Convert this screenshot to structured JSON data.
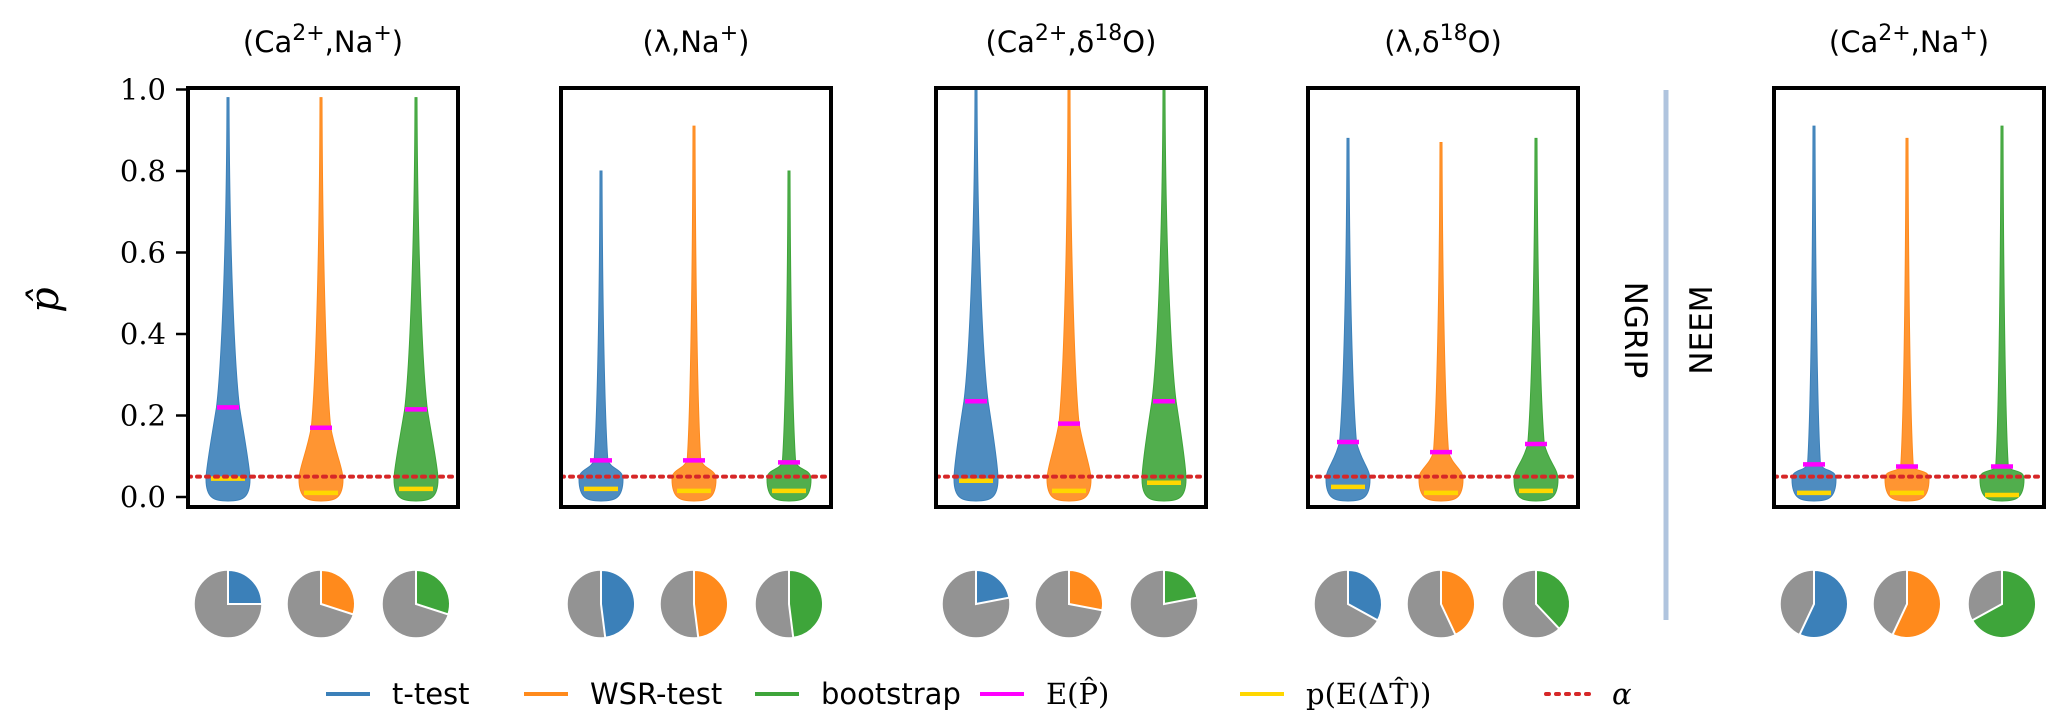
{
  "chart_data": {
    "type": "violin",
    "ylabel": "p̂",
    "ylim": [
      0.0,
      1.0
    ],
    "yticks": [
      "0.0",
      "0.2",
      "0.4",
      "0.6",
      "0.8",
      "1.0"
    ],
    "alpha_line": 0.05,
    "group_labels": {
      "ngrip": "NGRIP",
      "neem": "NEEM"
    },
    "panels": [
      {
        "title": "(Ca2+,Na+)",
        "title_parts": [
          "(Ca",
          "2+",
          ",Na",
          "+",
          ")"
        ],
        "dataset": "NGRIP",
        "series": [
          {
            "name": "t-test",
            "max": 0.98,
            "mean": 0.22,
            "p_delta": 0.045,
            "pie_fraction": 0.25
          },
          {
            "name": "WSR-test",
            "max": 0.98,
            "mean": 0.17,
            "p_delta": 0.01,
            "pie_fraction": 0.3
          },
          {
            "name": "bootstrap",
            "max": 0.98,
            "mean": 0.215,
            "p_delta": 0.02,
            "pie_fraction": 0.3
          }
        ]
      },
      {
        "title": "(λ,Na+)",
        "title_parts": [
          "(λ",
          "",
          ",Na",
          "+",
          ")"
        ],
        "dataset": "NGRIP",
        "series": [
          {
            "name": "t-test",
            "max": 0.8,
            "mean": 0.09,
            "p_delta": 0.02,
            "pie_fraction": 0.48
          },
          {
            "name": "WSR-test",
            "max": 0.91,
            "mean": 0.09,
            "p_delta": 0.015,
            "pie_fraction": 0.48
          },
          {
            "name": "bootstrap",
            "max": 0.8,
            "mean": 0.085,
            "p_delta": 0.015,
            "pie_fraction": 0.48
          }
        ]
      },
      {
        "title": "(Ca2+,δ18O)",
        "title_parts": [
          "(Ca",
          "2+",
          ",δ",
          "18",
          "O)"
        ],
        "dataset": "NGRIP",
        "series": [
          {
            "name": "t-test",
            "max": 1.0,
            "mean": 0.235,
            "p_delta": 0.04,
            "pie_fraction": 0.22
          },
          {
            "name": "WSR-test",
            "max": 1.0,
            "mean": 0.18,
            "p_delta": 0.015,
            "pie_fraction": 0.28
          },
          {
            "name": "bootstrap",
            "max": 1.0,
            "mean": 0.235,
            "p_delta": 0.035,
            "pie_fraction": 0.22
          }
        ]
      },
      {
        "title": "(λ,δ18O)",
        "title_parts": [
          "(λ",
          "",
          ",δ",
          "18",
          "O)"
        ],
        "dataset": "NGRIP",
        "series": [
          {
            "name": "t-test",
            "max": 0.88,
            "mean": 0.135,
            "p_delta": 0.025,
            "pie_fraction": 0.33
          },
          {
            "name": "WSR-test",
            "max": 0.87,
            "mean": 0.11,
            "p_delta": 0.01,
            "pie_fraction": 0.43
          },
          {
            "name": "bootstrap",
            "max": 0.88,
            "mean": 0.13,
            "p_delta": 0.015,
            "pie_fraction": 0.38
          }
        ]
      },
      {
        "title": "(Ca2+,Na+)",
        "title_parts": [
          "(Ca",
          "2+",
          ",Na",
          "+",
          ")"
        ],
        "dataset": "NEEM",
        "series": [
          {
            "name": "t-test",
            "max": 0.91,
            "mean": 0.08,
            "p_delta": 0.01,
            "pie_fraction": 0.57
          },
          {
            "name": "WSR-test",
            "max": 0.88,
            "mean": 0.075,
            "p_delta": 0.01,
            "pie_fraction": 0.57
          },
          {
            "name": "bootstrap",
            "max": 0.91,
            "mean": 0.075,
            "p_delta": 0.005,
            "pie_fraction": 0.67
          }
        ]
      }
    ],
    "legend": [
      {
        "label": "t-test",
        "color": "#3b80b9",
        "style": "solid"
      },
      {
        "label": "WSR-test",
        "color": "#ff8a1c",
        "style": "solid"
      },
      {
        "label": "bootstrap",
        "color": "#3ea53a",
        "style": "solid"
      },
      {
        "label": "E(P̂)",
        "color": "#ff00ff",
        "style": "solid"
      },
      {
        "label": "p(E(ΔT̂))",
        "color": "#ffd700",
        "style": "solid"
      },
      {
        "label": "α",
        "color": "#d62728",
        "style": "dotted"
      }
    ],
    "colors": {
      "t-test": "#3b80b9",
      "WSR-test": "#ff8a1c",
      "bootstrap": "#3ea53a",
      "mean": "#ff00ff",
      "p_delta": "#ffd700",
      "alpha": "#d62728",
      "pie_rest": "#939393",
      "separator": "#b0c4de"
    }
  }
}
